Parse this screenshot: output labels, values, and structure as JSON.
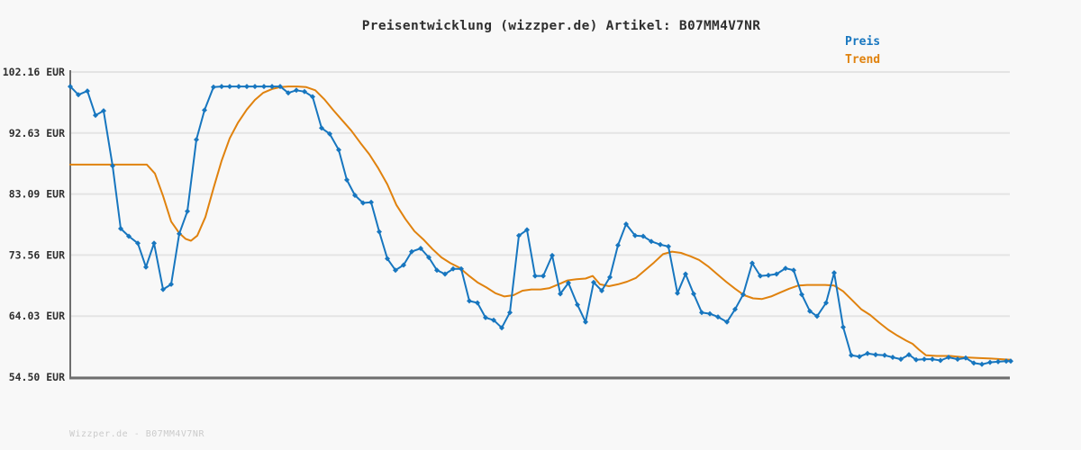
{
  "title": "Preisentwicklung (wizzper.de) Artikel: B07MM4V7NR",
  "watermark": "Wizzper.de - B07MM4V7NR",
  "legend": {
    "position": "top-right",
    "entries": [
      {
        "label": "Preis",
        "color": "#1776bf"
      },
      {
        "label": "Trend",
        "color": "#e0820e"
      }
    ]
  },
  "colors": {
    "background": "#f8f8f8",
    "grid": "#e4e4e4",
    "axis": "#6e6e6e",
    "text": "#2f2f2f",
    "preis": "#1776bf",
    "trend": "#e0820e"
  },
  "chart_data": {
    "type": "line",
    "title": "Preisentwicklung (wizzper.de) Artikel: B07MM4V7NR",
    "currency": "EUR",
    "grid": "horizontal",
    "x_axis": {
      "tick_labels": []
    },
    "y_axis": {
      "min": 54.5,
      "max": 102.16,
      "tick_values": [
        102.16,
        92.63,
        83.09,
        73.56,
        64.03,
        54.5
      ],
      "tick_labels": [
        "102.16 EUR",
        "92.63 EUR",
        "83.09 EUR",
        "73.56 EUR",
        "64.03 EUR",
        "54.50 EUR"
      ]
    },
    "series": [
      {
        "name": "Preis",
        "color": "#1776bf",
        "marker": "diamond",
        "points": [
          [
            78,
            99.9
          ],
          [
            87,
            98.6
          ],
          [
            97,
            99.2
          ],
          [
            106,
            95.4
          ],
          [
            115,
            96.1
          ],
          [
            125,
            87.5
          ],
          [
            134,
            77.7
          ],
          [
            143,
            76.5
          ],
          [
            153,
            75.4
          ],
          [
            162,
            71.7
          ],
          [
            171,
            75.4
          ],
          [
            181,
            68.2
          ],
          [
            190,
            69.0
          ],
          [
            199,
            76.9
          ],
          [
            208,
            80.4
          ],
          [
            218,
            91.6
          ],
          [
            227,
            96.2
          ],
          [
            237,
            99.8
          ],
          [
            246,
            99.9
          ],
          [
            255,
            99.9
          ],
          [
            265,
            99.9
          ],
          [
            274,
            99.9
          ],
          [
            283,
            99.9
          ],
          [
            293,
            99.9
          ],
          [
            302,
            99.9
          ],
          [
            311,
            99.9
          ],
          [
            320,
            98.9
          ],
          [
            329,
            99.3
          ],
          [
            338,
            99.1
          ],
          [
            347,
            98.3
          ],
          [
            357,
            93.4
          ],
          [
            366,
            92.5
          ],
          [
            376,
            90.0
          ],
          [
            385,
            85.3
          ],
          [
            394,
            82.9
          ],
          [
            403,
            81.7
          ],
          [
            412,
            81.8
          ],
          [
            421,
            77.2
          ],
          [
            430,
            73.0
          ],
          [
            439,
            71.2
          ],
          [
            448,
            72.0
          ],
          [
            457,
            74.1
          ],
          [
            467,
            74.6
          ],
          [
            476,
            73.2
          ],
          [
            485,
            71.2
          ],
          [
            494,
            70.6
          ],
          [
            503,
            71.4
          ],
          [
            512,
            71.4
          ],
          [
            521,
            66.4
          ],
          [
            530,
            66.1
          ],
          [
            539,
            63.8
          ],
          [
            548,
            63.4
          ],
          [
            557,
            62.2
          ],
          [
            566,
            64.6
          ],
          [
            576,
            76.6
          ],
          [
            585,
            77.5
          ],
          [
            594,
            70.3
          ],
          [
            603,
            70.3
          ],
          [
            613,
            73.5
          ],
          [
            622,
            67.5
          ],
          [
            631,
            69.2
          ],
          [
            641,
            65.8
          ],
          [
            650,
            63.1
          ],
          [
            659,
            69.3
          ],
          [
            668,
            68.0
          ],
          [
            677,
            70.1
          ],
          [
            686,
            75.1
          ],
          [
            695,
            78.4
          ],
          [
            705,
            76.6
          ],
          [
            714,
            76.5
          ],
          [
            723,
            75.7
          ],
          [
            733,
            75.2
          ],
          [
            742,
            74.9
          ],
          [
            752,
            67.6
          ],
          [
            761,
            70.6
          ],
          [
            770,
            67.5
          ],
          [
            779,
            64.6
          ],
          [
            788,
            64.4
          ],
          [
            797,
            63.9
          ],
          [
            807,
            63.1
          ],
          [
            816,
            65.1
          ],
          [
            825,
            67.4
          ],
          [
            835,
            72.3
          ],
          [
            844,
            70.3
          ],
          [
            853,
            70.4
          ],
          [
            862,
            70.6
          ],
          [
            872,
            71.5
          ],
          [
            881,
            71.2
          ],
          [
            890,
            67.4
          ],
          [
            899,
            64.8
          ],
          [
            907,
            64.0
          ],
          [
            917,
            66.1
          ],
          [
            926,
            70.8
          ],
          [
            936,
            62.3
          ],
          [
            945,
            57.9
          ],
          [
            954,
            57.7
          ],
          [
            963,
            58.2
          ],
          [
            972,
            58.0
          ],
          [
            982,
            57.9
          ],
          [
            991,
            57.6
          ],
          [
            1000,
            57.3
          ],
          [
            1009,
            58.0
          ],
          [
            1017,
            57.2
          ],
          [
            1026,
            57.3
          ],
          [
            1035,
            57.3
          ],
          [
            1044,
            57.1
          ],
          [
            1053,
            57.6
          ],
          [
            1063,
            57.3
          ],
          [
            1072,
            57.5
          ],
          [
            1081,
            56.7
          ],
          [
            1090,
            56.5
          ],
          [
            1099,
            56.8
          ],
          [
            1108,
            56.9
          ],
          [
            1117,
            57.0
          ],
          [
            1122,
            57.0
          ]
        ]
      },
      {
        "name": "Trend",
        "color": "#e0820e",
        "marker": "none",
        "points": [
          [
            78,
            87.7
          ],
          [
            163,
            87.7
          ],
          [
            172,
            86.3
          ],
          [
            181,
            82.8
          ],
          [
            190,
            78.8
          ],
          [
            199,
            77.0
          ],
          [
            206,
            76.1
          ],
          [
            212,
            75.8
          ],
          [
            219,
            76.6
          ],
          [
            228,
            79.5
          ],
          [
            237,
            84.0
          ],
          [
            246,
            88.3
          ],
          [
            255,
            91.8
          ],
          [
            264,
            94.2
          ],
          [
            274,
            96.3
          ],
          [
            283,
            97.8
          ],
          [
            292,
            98.9
          ],
          [
            302,
            99.5
          ],
          [
            311,
            99.8
          ],
          [
            320,
            99.9
          ],
          [
            330,
            99.9
          ],
          [
            340,
            99.8
          ],
          [
            350,
            99.3
          ],
          [
            360,
            97.9
          ],
          [
            370,
            96.2
          ],
          [
            380,
            94.6
          ],
          [
            390,
            93.0
          ],
          [
            400,
            91.1
          ],
          [
            410,
            89.3
          ],
          [
            420,
            87.1
          ],
          [
            430,
            84.6
          ],
          [
            440,
            81.4
          ],
          [
            450,
            79.2
          ],
          [
            460,
            77.3
          ],
          [
            470,
            76.0
          ],
          [
            480,
            74.5
          ],
          [
            490,
            73.2
          ],
          [
            500,
            72.3
          ],
          [
            510,
            71.6
          ],
          [
            520,
            70.4
          ],
          [
            530,
            69.3
          ],
          [
            540,
            68.5
          ],
          [
            550,
            67.6
          ],
          [
            560,
            67.1
          ],
          [
            570,
            67.3
          ],
          [
            580,
            68.0
          ],
          [
            590,
            68.2
          ],
          [
            600,
            68.2
          ],
          [
            610,
            68.4
          ],
          [
            620,
            69.0
          ],
          [
            630,
            69.6
          ],
          [
            640,
            69.8
          ],
          [
            650,
            69.9
          ],
          [
            658,
            70.3
          ],
          [
            666,
            69.0
          ],
          [
            676,
            68.7
          ],
          [
            686,
            69.0
          ],
          [
            696,
            69.4
          ],
          [
            706,
            70.0
          ],
          [
            716,
            71.2
          ],
          [
            726,
            72.4
          ],
          [
            736,
            73.7
          ],
          [
            746,
            74.1
          ],
          [
            756,
            73.9
          ],
          [
            766,
            73.4
          ],
          [
            776,
            72.8
          ],
          [
            786,
            71.8
          ],
          [
            796,
            70.6
          ],
          [
            806,
            69.4
          ],
          [
            816,
            68.3
          ],
          [
            826,
            67.3
          ],
          [
            836,
            66.8
          ],
          [
            846,
            66.7
          ],
          [
            856,
            67.1
          ],
          [
            866,
            67.7
          ],
          [
            876,
            68.3
          ],
          [
            886,
            68.8
          ],
          [
            896,
            68.9
          ],
          [
            906,
            68.9
          ],
          [
            916,
            68.9
          ],
          [
            926,
            68.8
          ],
          [
            936,
            67.9
          ],
          [
            946,
            66.5
          ],
          [
            956,
            65.1
          ],
          [
            966,
            64.2
          ],
          [
            976,
            63.0
          ],
          [
            986,
            61.9
          ],
          [
            996,
            61.0
          ],
          [
            1006,
            60.2
          ],
          [
            1013,
            59.7
          ],
          [
            1020,
            58.8
          ],
          [
            1028,
            57.9
          ],
          [
            1040,
            57.8
          ],
          [
            1055,
            57.8
          ],
          [
            1070,
            57.6
          ],
          [
            1085,
            57.5
          ],
          [
            1100,
            57.4
          ],
          [
            1112,
            57.3
          ],
          [
            1122,
            57.2
          ]
        ]
      }
    ],
    "layout_hints": {
      "legend_position": "top-right",
      "x_tick_labels_visible": false,
      "gridlines": "horizontal-light"
    }
  }
}
